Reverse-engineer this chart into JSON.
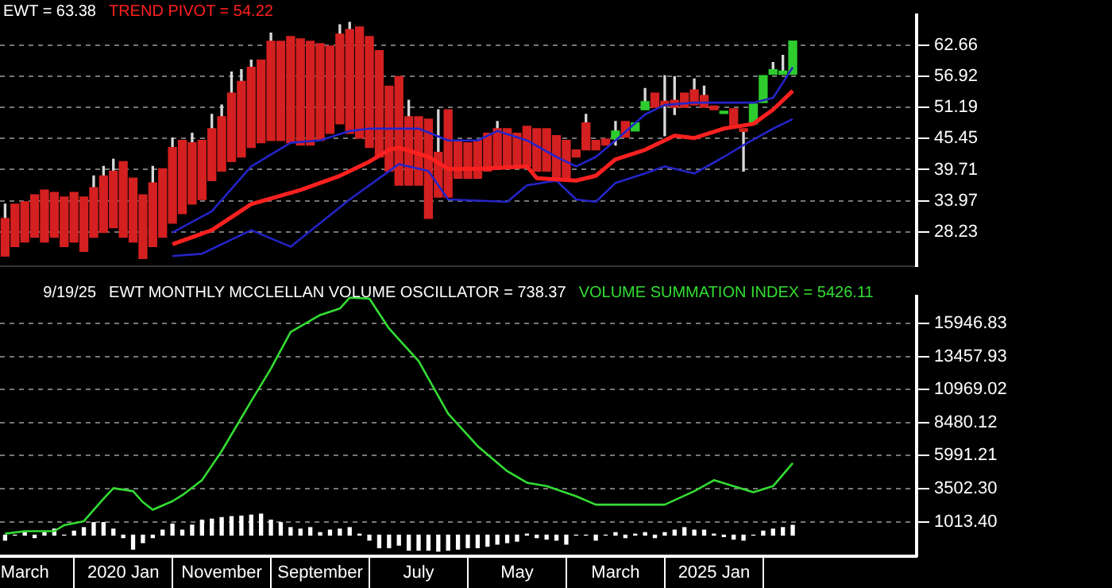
{
  "chart_data": [
    {
      "type": "candlestick",
      "title": "EWT = 63.38",
      "legend": "top left",
      "grid": "y",
      "tick_labels": "y",
      "marker": "none",
      "x": [
        "2019-01",
        "2019-02",
        "2019-03",
        "2019-04",
        "2019-05",
        "2019-06",
        "2019-07",
        "2019-08",
        "2019-09",
        "2019-10",
        "2019-11",
        "2019-12",
        "2020-01",
        "2020-02",
        "2020-03",
        "2020-04",
        "2020-05",
        "2020-06",
        "2020-07",
        "2020-08",
        "2020-09",
        "2020-10",
        "2020-11",
        "2020-12",
        "2021-01",
        "2021-02",
        "2021-03",
        "2021-04",
        "2021-05",
        "2021-06",
        "2021-07",
        "2021-08",
        "2021-09",
        "2021-10",
        "2021-11",
        "2021-12",
        "2022-01",
        "2022-02",
        "2022-03",
        "2022-04",
        "2022-05",
        "2022-06",
        "2022-07",
        "2022-08",
        "2022-09",
        "2022-10",
        "2022-11",
        "2022-12",
        "2023-01",
        "2023-02",
        "2023-03",
        "2023-04",
        "2023-05",
        "2023-06",
        "2023-07",
        "2023-08",
        "2023-09",
        "2023-10",
        "2023-11",
        "2023-12",
        "2024-01",
        "2024-02",
        "2024-03",
        "2024-04",
        "2024-05",
        "2024-06",
        "2024-07",
        "2024-08",
        "2024-09",
        "2024-10",
        "2024-11",
        "2024-12",
        "2025-01",
        "2025-02",
        "2025-03",
        "2025-04",
        "2025-05",
        "2025-06",
        "2025-07",
        "2025-08",
        "2025-09"
      ],
      "ohlc": [
        [
          30.74,
          33.35,
          23.79,
          23.79
        ],
        [
          33.35,
          33.35,
          25.53,
          25.53
        ],
        [
          33.79,
          33.79,
          26.39,
          26.39
        ],
        [
          35.09,
          35.09,
          27.26,
          27.26
        ],
        [
          35.96,
          35.96,
          26.39,
          26.39
        ],
        [
          35.53,
          35.53,
          27.26,
          27.26
        ],
        [
          34.66,
          34.66,
          25.53,
          25.53
        ],
        [
          35.53,
          35.53,
          26.39,
          26.39
        ],
        [
          34.66,
          34.66,
          24.66,
          24.66
        ],
        [
          36.4,
          38.57,
          27.26,
          27.26
        ],
        [
          38.57,
          40.31,
          28.13,
          28.13
        ],
        [
          39.44,
          41.61,
          29.0,
          29.0
        ],
        [
          41.18,
          41.18,
          27.26,
          27.26
        ],
        [
          38.14,
          38.14,
          26.39,
          26.39
        ],
        [
          35.09,
          35.09,
          23.35,
          23.35
        ],
        [
          37.27,
          40.31,
          25.53,
          25.53
        ],
        [
          39.87,
          39.87,
          27.26,
          27.26
        ],
        [
          43.79,
          45.53,
          29.87,
          29.87
        ],
        [
          45.09,
          45.09,
          31.61,
          31.61
        ],
        [
          44.66,
          46.4,
          33.35,
          33.35
        ],
        [
          45.09,
          45.09,
          34.22,
          34.22
        ],
        [
          47.27,
          49.88,
          37.7,
          37.7
        ],
        [
          49.44,
          51.62,
          39.44,
          39.44
        ],
        [
          53.79,
          57.7,
          41.18,
          41.18
        ],
        [
          55.96,
          58.14,
          42.05,
          42.05
        ],
        [
          58.57,
          59.88,
          43.79,
          43.79
        ],
        [
          59.88,
          59.88,
          44.66,
          44.66
        ],
        [
          63.36,
          64.84,
          45.09,
          45.09
        ],
        [
          63.36,
          63.36,
          45.09,
          45.09
        ],
        [
          64.23,
          64.23,
          44.66,
          44.66
        ],
        [
          63.79,
          63.79,
          44.22,
          44.22
        ],
        [
          63.36,
          63.36,
          44.22,
          44.22
        ],
        [
          62.92,
          62.92,
          45.09,
          45.09
        ],
        [
          62.49,
          62.49,
          46.4,
          46.4
        ],
        [
          64.66,
          66.4,
          48.14,
          48.14
        ],
        [
          65.53,
          66.84,
          46.4,
          46.4
        ],
        [
          65.97,
          65.97,
          45.53,
          45.53
        ],
        [
          64.23,
          64.23,
          43.79,
          43.79
        ],
        [
          61.62,
          61.62,
          42.05,
          42.05
        ],
        [
          55.09,
          55.09,
          39.44,
          39.44
        ],
        [
          56.83,
          56.83,
          36.83,
          36.83
        ],
        [
          49.44,
          52.49,
          36.83,
          36.83
        ],
        [
          49.44,
          49.44,
          36.83,
          36.83
        ],
        [
          49.01,
          49.01,
          30.74,
          30.74
        ],
        [
          42.92,
          50.75,
          34.66,
          34.66
        ],
        [
          50.75,
          50.75,
          34.66,
          34.66
        ],
        [
          45.09,
          45.09,
          38.14,
          38.14
        ],
        [
          44.66,
          44.66,
          38.14,
          38.14
        ],
        [
          45.09,
          45.09,
          38.14,
          38.14
        ],
        [
          46.4,
          46.4,
          39.44,
          39.44
        ],
        [
          47.27,
          48.57,
          40.31,
          40.31
        ],
        [
          47.27,
          47.27,
          40.31,
          40.31
        ],
        [
          46.4,
          46.4,
          40.31,
          40.31
        ],
        [
          47.7,
          47.7,
          40.31,
          40.31
        ],
        [
          47.27,
          47.27,
          39.44,
          39.44
        ],
        [
          47.27,
          47.27,
          39.44,
          39.44
        ],
        [
          45.96,
          45.96,
          38.14,
          38.14
        ],
        [
          45.09,
          45.09,
          37.7,
          37.7
        ],
        [
          43.35,
          43.35,
          42.05,
          42.05
        ],
        [
          48.31,
          49.88,
          43.35,
          43.35
        ],
        [
          45.09,
          45.09,
          43.35,
          43.35
        ],
        [
          45.35,
          45.35,
          44.22,
          44.22
        ],
        [
          45.35,
          48.57,
          44.22,
          46.83
        ],
        [
          48.57,
          48.57,
          45.7,
          45.7
        ],
        [
          46.83,
          48.31,
          46.83,
          48.31
        ],
        [
          50.75,
          54.66,
          50.75,
          52.22
        ],
        [
          53.79,
          53.79,
          51.18,
          51.18
        ],
        [
          52.31,
          57.01,
          45.96,
          51.44
        ],
        [
          52.49,
          56.83,
          49.88,
          51.18
        ],
        [
          53.79,
          53.79,
          51.18,
          51.18
        ],
        [
          54.4,
          56.4,
          51.62,
          51.62
        ],
        [
          53.36,
          55.09,
          51.18,
          51.18
        ],
        [
          51.44,
          51.44,
          50.75,
          50.75
        ],
        [
          50.05,
          50.49,
          50.05,
          50.49
        ],
        [
          50.92,
          50.92,
          47.44,
          47.44
        ],
        [
          47.27,
          47.27,
          39.44,
          46.75
        ],
        [
          48.14,
          51.79,
          48.14,
          51.79
        ],
        [
          52.05,
          57.01,
          52.05,
          57.01
        ],
        [
          57.27,
          59.44,
          57.27,
          58.14
        ],
        [
          57.27,
          60.75,
          57.27,
          57.88
        ],
        [
          57.27,
          63.38,
          57.27,
          63.38
        ]
      ],
      "colors": [
        "#d42020",
        "#d42020",
        "#d42020",
        "#d42020",
        "#d42020",
        "#d42020",
        "#d42020",
        "#d42020",
        "#d42020",
        "#d42020",
        "#d42020",
        "#d42020",
        "#d42020",
        "#d42020",
        "#d42020",
        "#d42020",
        "#d42020",
        "#d42020",
        "#d42020",
        "#d42020",
        "#d42020",
        "#d42020",
        "#d42020",
        "#d42020",
        "#d42020",
        "#d42020",
        "#d42020",
        "#d42020",
        "#d42020",
        "#d42020",
        "#d42020",
        "#d42020",
        "#d42020",
        "#d42020",
        "#d42020",
        "#d42020",
        "#d42020",
        "#d42020",
        "#d42020",
        "#d42020",
        "#d42020",
        "#d42020",
        "#d42020",
        "#d42020",
        "#d42020",
        "#d42020",
        "#d42020",
        "#d42020",
        "#d42020",
        "#d42020",
        "#d42020",
        "#d42020",
        "#d42020",
        "#d42020",
        "#d42020",
        "#d42020",
        "#d42020",
        "#d42020",
        "#d42020",
        "#d42020",
        "#d42020",
        "#d42020",
        "#2ecc2e",
        "#d42020",
        "#2ecc2e",
        "#2ecc2e",
        "#d42020",
        "#d42020",
        "#d42020",
        "#d42020",
        "#d42020",
        "#d42020",
        "#d42020",
        "#2ecc2e",
        "#d42020",
        "#d42020",
        "#2ecc2e",
        "#2ecc2e",
        "#2ecc2e",
        "#2ecc2e",
        "#2ecc2e"
      ],
      "series": [
        {
          "type": "line",
          "name": "TREND PIVOT = 54.22",
          "color": "#ff2020",
          "x": [
            "2020-06",
            "2020-10",
            "2021-02",
            "2021-07",
            "2021-11",
            "2022-02",
            "2022-04",
            "2022-05",
            "2022-08",
            "2022-10",
            "2023-01",
            "2023-06",
            "2023-07",
            "2023-11",
            "2024-01",
            "2024-03",
            "2024-06",
            "2024-09",
            "2024-11",
            "2025-02",
            "2025-05",
            "2025-07",
            "2025-09"
          ],
          "values": [
            25.96,
            28.57,
            33.35,
            35.96,
            38.57,
            41.18,
            43.35,
            43.79,
            42.05,
            39.87,
            39.87,
            40.31,
            38.14,
            37.7,
            38.57,
            41.61,
            43.35,
            45.96,
            45.53,
            47.27,
            48.14,
            50.75,
            54.22
          ]
        },
        {
          "type": "line",
          "color": "#2424c8",
          "x": [
            "2020-06",
            "2020-10",
            "2021-02",
            "2021-06",
            "2021-09",
            "2021-12",
            "2022-02",
            "2022-07",
            "2022-10",
            "2023-01",
            "2023-03",
            "2023-06",
            "2023-09",
            "2023-11",
            "2024-01",
            "2024-03",
            "2024-06",
            "2024-08",
            "2024-11",
            "2025-02",
            "2025-05",
            "2025-07",
            "2025-09"
          ],
          "values": [
            28.13,
            32.05,
            40.31,
            44.66,
            45.09,
            46.83,
            47.27,
            47.27,
            45.09,
            45.09,
            46.83,
            45.09,
            42.05,
            40.31,
            42.05,
            45.09,
            49.88,
            51.62,
            52.05,
            52.05,
            52.05,
            52.92,
            58.57
          ]
        },
        {
          "type": "line",
          "color": "#2424c8",
          "x": [
            "2020-06",
            "2020-09",
            "2021-02",
            "2021-06",
            "2021-09",
            "2021-12",
            "2022-04",
            "2022-05",
            "2022-08",
            "2022-10",
            "2023-04",
            "2023-06",
            "2023-09",
            "2023-11",
            "2024-01",
            "2024-03",
            "2024-06",
            "2024-08",
            "2024-11",
            "2025-02",
            "2025-04",
            "2025-07",
            "2025-09"
          ],
          "values": [
            23.79,
            24.22,
            28.57,
            25.53,
            29.87,
            34.22,
            39.44,
            40.74,
            39.44,
            34.22,
            33.79,
            36.83,
            37.7,
            34.22,
            33.79,
            37.27,
            39.0,
            40.31,
            39.0,
            42.05,
            44.22,
            47.27,
            49.01
          ]
        }
      ],
      "xlim": [
        "2018-12-16",
        "2026-09-19"
      ],
      "ylim": [
        21.96,
        68.14
      ],
      "yticks": [
        62.66,
        56.92,
        51.19,
        45.45,
        39.71,
        33.97,
        28.23
      ]
    },
    {
      "type": "bar",
      "title": "9/19/25",
      "legend": "top",
      "grid": "y",
      "marker": "none",
      "series": [
        {
          "type": "bar",
          "name": "EWT MONTHLY MCCLELLAN VOLUME OSCILLATOR = 738.37",
          "color": "#ffffff",
          "x": [
            "2019-01",
            "2019-02",
            "2019-03",
            "2019-04",
            "2019-05",
            "2019-06",
            "2019-07",
            "2019-08",
            "2019-09",
            "2019-10",
            "2019-11",
            "2019-12",
            "2020-01",
            "2020-02",
            "2020-03",
            "2020-04",
            "2020-05",
            "2020-06",
            "2020-07",
            "2020-08",
            "2020-09",
            "2020-10",
            "2020-11",
            "2020-12",
            "2021-01",
            "2021-02",
            "2021-03",
            "2021-04",
            "2021-05",
            "2021-06",
            "2021-07",
            "2021-08",
            "2021-09",
            "2021-10",
            "2021-11",
            "2021-12",
            "2022-01",
            "2022-02",
            "2022-03",
            "2022-04",
            "2022-05",
            "2022-06",
            "2022-07",
            "2022-08",
            "2022-09",
            "2022-10",
            "2022-11",
            "2022-12",
            "2023-01",
            "2023-02",
            "2023-03",
            "2023-04",
            "2023-05",
            "2023-06",
            "2023-07",
            "2023-08",
            "2023-09",
            "2023-10",
            "2023-11",
            "2023-12",
            "2024-01",
            "2024-02",
            "2024-03",
            "2024-04",
            "2024-05",
            "2024-06",
            "2024-07",
            "2024-08",
            "2024-09",
            "2024-10",
            "2024-11",
            "2024-12",
            "2025-01",
            "2025-02",
            "2025-03",
            "2025-04",
            "2025-05",
            "2025-06",
            "2025-07",
            "2025-08",
            "2025-09"
          ],
          "values": [
            -377,
            0,
            189,
            -189,
            189,
            453,
            0,
            302,
            566,
            943,
            943,
            453,
            -189,
            -1056,
            -566,
            -189,
            377,
            830,
            377,
            754,
            1131,
            1207,
            1320,
            1395,
            1433,
            1508,
            1584,
            1131,
            943,
            566,
            453,
            566,
            189,
            377,
            453,
            566,
            75,
            -377,
            -943,
            -943,
            -754,
            -1131,
            -1131,
            -1131,
            -1207,
            -1131,
            -1056,
            -943,
            -943,
            -830,
            -679,
            -566,
            -453,
            75,
            -189,
            -302,
            -377,
            -679,
            0,
            0,
            -377,
            0,
            189,
            -189,
            75,
            189,
            -189,
            189,
            377,
            566,
            377,
            377,
            75,
            -113,
            -302,
            -377,
            0,
            302,
            453,
            566,
            738.37
          ]
        },
        {
          "type": "line",
          "name": "VOLUME SUMMATION INDEX = 5426.11",
          "color": "#33dd33",
          "x": [
            "2019-01",
            "2019-03",
            "2019-06",
            "2019-07",
            "2019-09",
            "2019-11",
            "2019-12",
            "2020-02",
            "2020-03",
            "2020-04",
            "2020-06",
            "2020-07",
            "2020-09",
            "2020-11",
            "2021-02",
            "2021-04",
            "2021-06",
            "2021-09",
            "2021-11",
            "2021-12",
            "2022-02",
            "2022-04",
            "2022-07",
            "2022-10",
            "2023-01",
            "2023-04",
            "2023-06",
            "2023-08",
            "2023-11",
            "2024-01",
            "2024-08",
            "2024-11",
            "2025-01",
            "2025-05",
            "2025-07",
            "2025-09"
          ],
          "values": [
            109,
            297,
            297,
            750,
            1051,
            2748,
            3540,
            3314,
            2484,
            1918,
            2559,
            3012,
            4143,
            6331,
            10101,
            12553,
            15305,
            16588,
            17078,
            17900,
            17832,
            15570,
            13118,
            9159,
            6708,
            4822,
            3955,
            3691,
            2936,
            2295,
            2295,
            3314,
            4143,
            3238,
            3691,
            5426.11
          ]
        }
      ],
      "xlim": [
        "2018-12-16",
        "2026-09-19"
      ],
      "xticks": [
        {
          "value": "2019-03",
          "label": "March"
        },
        {
          "value": "2020-01",
          "label": "2020 Jan"
        },
        {
          "value": "2020-11",
          "label": "November"
        },
        {
          "value": "2021-09",
          "label": "September"
        },
        {
          "value": "2022-07",
          "label": "July"
        },
        {
          "value": "2023-05",
          "label": "May"
        },
        {
          "value": "2024-03",
          "label": "March"
        },
        {
          "value": "2025-01",
          "label": "2025 Jan"
        }
      ],
      "ylim": [
        -1589,
        17983
      ],
      "yticks": [
        15946.83,
        13457.93,
        10969.02,
        8480.12,
        5991.21,
        {
          "value": 3502.3,
          "label": "3502.30"
        },
        {
          "value": 1013.4,
          "label": "1013.40"
        }
      ]
    }
  ]
}
